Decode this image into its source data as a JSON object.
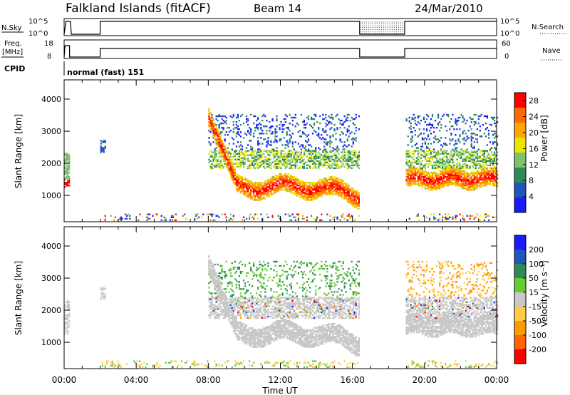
{
  "header": {
    "title": "Falkland Islands (fitACF)",
    "beam": "Beam 14",
    "date": "24/Mar/2010"
  },
  "status_panels": {
    "nsky": {
      "label": "N.Sky",
      "ticks": [
        "10^5",
        "10^0"
      ]
    },
    "nsearch": {
      "label": "N.Search",
      "ticks": [
        "10^5",
        "10^0"
      ]
    },
    "freq": {
      "label_line1": "Freq.",
      "label_line2": "[MHz]",
      "ticks": [
        "18",
        "8"
      ]
    },
    "nave": {
      "label": "Nave",
      "ticks": [
        "60",
        "0"
      ]
    },
    "cpid": {
      "label": "CPID",
      "value": "normal (fast) 151"
    }
  },
  "colors": {
    "power": [
      "#1a1aff",
      "#2255bb",
      "#2e8b57",
      "#7cc36e",
      "#e6e600",
      "#ffa500",
      "#ff6a00",
      "#ff0000"
    ],
    "velocity": [
      "#ff0000",
      "#ff6600",
      "#ff9900",
      "#ffcc44",
      "#c8c8c8",
      "#66cc33",
      "#2e8b57",
      "#2255bb",
      "#1a1aff"
    ]
  },
  "chart_data": [
    {
      "type": "heatmap",
      "title": "",
      "xlabel": "Time UT",
      "ylabel": "Slant Range [km]",
      "xlim": [
        "00:00",
        "24:00"
      ],
      "ylim": [
        180,
        4600
      ],
      "x_ticks": [
        "00:00",
        "04:00",
        "08:00",
        "12:00",
        "16:00",
        "20:00",
        "00:00"
      ],
      "y_ticks": [
        "1000",
        "2000",
        "3000",
        "4000"
      ],
      "colorbar": {
        "label": "Power [dB]",
        "ticks": [
          "4",
          "8",
          "12",
          "16",
          "20",
          "24",
          "28"
        ],
        "range": [
          0,
          30
        ]
      },
      "data_gaps_hours": [
        [
          0.3,
          2.0
        ],
        [
          16.4,
          18.9
        ]
      ],
      "features": [
        {
          "name": "main echo band",
          "hours": [
            9.0,
            16.4
          ],
          "range_km": [
            700,
            1700
          ],
          "power_db": 26
        },
        {
          "name": "main echo band",
          "hours": [
            18.9,
            24.0
          ],
          "range_km": [
            1300,
            1800
          ],
          "power_db": 24
        },
        {
          "name": "descending band",
          "hours": [
            8.0,
            9.6
          ],
          "range_km": [
            1300,
            3500
          ],
          "power_db": 14
        },
        {
          "name": "mid band",
          "hours": [
            9.5,
            16.4
          ],
          "range_km": [
            1800,
            2400
          ],
          "power_db": 14
        },
        {
          "name": "upper scatter",
          "hours": [
            8.0,
            16.4
          ],
          "range_km": [
            2500,
            3500
          ],
          "power_db": 8
        }
      ]
    },
    {
      "type": "heatmap",
      "title": "",
      "xlabel": "Time UT",
      "ylabel": "Slant Range [km]",
      "xlim": [
        "00:00",
        "24:00"
      ],
      "ylim": [
        180,
        4600
      ],
      "x_ticks": [
        "00:00",
        "04:00",
        "08:00",
        "12:00",
        "16:00",
        "20:00",
        "00:00"
      ],
      "y_ticks": [
        "1000",
        "2000",
        "3000",
        "4000"
      ],
      "colorbar": {
        "label": "Velocity [m s⁻¹]",
        "ticks": [
          "200",
          "100",
          "50",
          "15",
          "-15",
          "-50",
          "-100",
          "-200"
        ],
        "range": [
          -250,
          250
        ]
      },
      "data_gaps_hours": [
        [
          0.3,
          2.0
        ],
        [
          16.4,
          18.9
        ]
      ],
      "features": [
        {
          "name": "ground scatter",
          "hours": [
            8.0,
            16.4
          ],
          "range_km": [
            700,
            2400
          ],
          "velocity_ms": 0
        },
        {
          "name": "ground scatter",
          "hours": [
            18.9,
            24.0
          ],
          "range_km": [
            1300,
            2100
          ],
          "velocity_ms": 0
        },
        {
          "name": "ionospheric scatter",
          "hours": [
            18.9,
            24.0
          ],
          "range_km": [
            1500,
            3500
          ],
          "velocity_ms": -40
        }
      ]
    }
  ]
}
